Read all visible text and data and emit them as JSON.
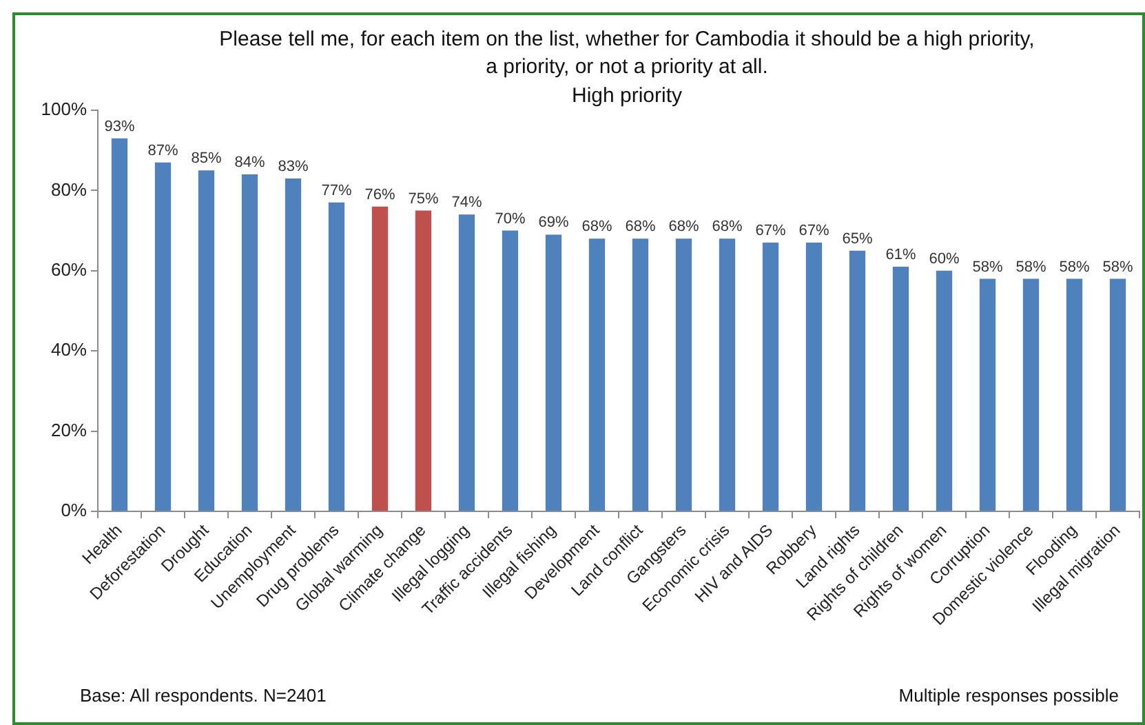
{
  "chart_data": {
    "type": "bar",
    "title": "Please tell me, for each item on the list, whether for Cambodia it should be a high priority, a priority, or not a priority at all.",
    "subtitle": "High priority",
    "categories": [
      "Health",
      "Deforestation",
      "Drought",
      "Education",
      "Unemployment",
      "Drug problems",
      "Global warming",
      "Climate change",
      "Illegal logging",
      "Traffic accidents",
      "Illegal fishing",
      "Development",
      "Land conflict",
      "Gangsters",
      "Economic crisis",
      "HIV and AIDS",
      "Robbery",
      "Land rights",
      "Rights of children",
      "Rights of women",
      "Corruption",
      "Domestic violence",
      "Flooding",
      "Illegal migration"
    ],
    "values": [
      93,
      87,
      85,
      84,
      83,
      77,
      76,
      75,
      74,
      70,
      69,
      68,
      68,
      68,
      68,
      67,
      67,
      65,
      61,
      60,
      58,
      58,
      58,
      58
    ],
    "colors": [
      "#4f81bd",
      "#4f81bd",
      "#4f81bd",
      "#4f81bd",
      "#4f81bd",
      "#4f81bd",
      "#c0504d",
      "#c0504d",
      "#4f81bd",
      "#4f81bd",
      "#4f81bd",
      "#4f81bd",
      "#4f81bd",
      "#4f81bd",
      "#4f81bd",
      "#4f81bd",
      "#4f81bd",
      "#4f81bd",
      "#4f81bd",
      "#4f81bd",
      "#4f81bd",
      "#4f81bd",
      "#4f81bd",
      "#4f81bd"
    ],
    "value_labels": [
      "93%",
      "87%",
      "85%",
      "84%",
      "83%",
      "77%",
      "76%",
      "75%",
      "74%",
      "70%",
      "69%",
      "68%",
      "68%",
      "68%",
      "68%",
      "67%",
      "67%",
      "65%",
      "61%",
      "60%",
      "58%",
      "58%",
      "58%",
      "58%"
    ],
    "ylim": [
      0,
      100
    ],
    "yticks": [
      {
        "value": 0,
        "label": "0%"
      },
      {
        "value": 20,
        "label": "20%"
      },
      {
        "value": 40,
        "label": "40%"
      },
      {
        "value": 60,
        "label": "60%"
      },
      {
        "value": 80,
        "label": "80%"
      },
      {
        "value": 100,
        "label": "100%"
      }
    ],
    "annotations": [
      "Base: All respondents. N=2401",
      "Multiple responses possible"
    ]
  }
}
